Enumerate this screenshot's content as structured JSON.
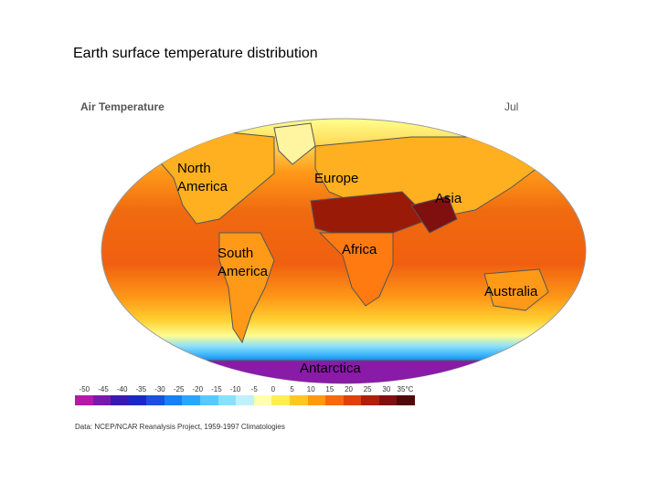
{
  "title": "Earth surface temperature distribution",
  "map_header": {
    "left": "Air Temperature",
    "right": "Jul"
  },
  "labels": {
    "north_america": "North\nAmerica",
    "europe": "Europe",
    "asia": "Asia",
    "africa": "Africa",
    "south_america": "South\nAmerica",
    "australia": "Australia",
    "antarctica": "Antarctica"
  },
  "legend": {
    "ticks": [
      "-50",
      "-45",
      "-40",
      "-35",
      "-30",
      "-25",
      "-20",
      "-15",
      "-10",
      "-5",
      "0",
      "5",
      "10",
      "15",
      "20",
      "25",
      "30",
      "35°C"
    ],
    "colors": [
      "#b41aa8",
      "#7a1aa8",
      "#3b1ab0",
      "#1a28c8",
      "#1a50e0",
      "#1a80f0",
      "#2aa8f8",
      "#5ac8fa",
      "#8ae0fc",
      "#c0f0fc",
      "#ffffb0",
      "#ffee50",
      "#ffc820",
      "#ff9a10",
      "#f86810",
      "#e04010",
      "#b02008",
      "#801010",
      "#500808"
    ]
  },
  "source": "Data: NCEP/NCAR Reanalysis Project, 1959-1997 Climatologies",
  "colors": {
    "background": "#ffffff",
    "hot": "#b82a10",
    "warm": "#ff8a18",
    "mild": "#ffd030",
    "cool": "#ffff90",
    "cold": "#5ac8fa",
    "freezing": "#1a28c8",
    "polar": "#8a1aa8"
  }
}
